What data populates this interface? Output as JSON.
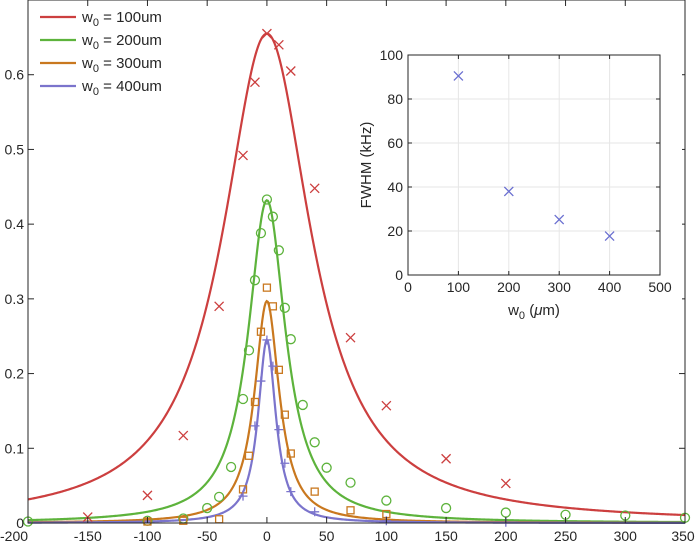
{
  "chart_data": [
    {
      "type": "line",
      "xlim": [
        -200,
        350
      ],
      "ylim": [
        0,
        0.7
      ],
      "x_ticks": [
        -200,
        -150,
        -100,
        -50,
        0,
        50,
        100,
        150,
        200,
        250,
        300,
        350
      ],
      "y_ticks": [
        0,
        0.1,
        0.2,
        0.3,
        0.4,
        0.5,
        0.6
      ],
      "x_tick_labels": [
        "-200",
        "-150",
        "-100",
        "-50",
        "0",
        "50",
        "100",
        "150",
        "200",
        "250",
        "300",
        "350"
      ],
      "y_tick_labels": [
        "0",
        "0.1",
        "0.2",
        "0.3",
        "0.4",
        "0.5",
        "0.6"
      ],
      "grid": false,
      "legend_position": "top-left",
      "series": [
        {
          "name": "w_0 = 100um",
          "legend_base": "w",
          "legend_sub": "0",
          "legend_rest": " = 100um",
          "color": "#cc3f3f",
          "marker": "x",
          "fit": {
            "amplitude": 0.655,
            "center": 0,
            "hwhm": 45
          },
          "points": [
            {
              "x": -150,
              "y": 0.008
            },
            {
              "x": -100,
              "y": 0.037
            },
            {
              "x": -70,
              "y": 0.117
            },
            {
              "x": -40,
              "y": 0.29
            },
            {
              "x": -20,
              "y": 0.492
            },
            {
              "x": -10,
              "y": 0.59
            },
            {
              "x": 0,
              "y": 0.655
            },
            {
              "x": 10,
              "y": 0.64
            },
            {
              "x": 20,
              "y": 0.605
            },
            {
              "x": 40,
              "y": 0.448
            },
            {
              "x": 70,
              "y": 0.248
            },
            {
              "x": 100,
              "y": 0.157
            },
            {
              "x": 150,
              "y": 0.086
            },
            {
              "x": 200,
              "y": 0.053
            }
          ]
        },
        {
          "name": "w_0 = 200um",
          "legend_base": "w",
          "legend_sub": "0",
          "legend_rest": " = 200um",
          "color": "#5db33c",
          "marker": "o",
          "fit": {
            "amplitude": 0.432,
            "center": 0,
            "hwhm": 19
          },
          "points": [
            {
              "x": -200,
              "y": 0.002
            },
            {
              "x": -100,
              "y": 0.003
            },
            {
              "x": -70,
              "y": 0.006
            },
            {
              "x": -50,
              "y": 0.02
            },
            {
              "x": -40,
              "y": 0.035
            },
            {
              "x": -30,
              "y": 0.075
            },
            {
              "x": -20,
              "y": 0.166
            },
            {
              "x": -15,
              "y": 0.231
            },
            {
              "x": -10,
              "y": 0.325
            },
            {
              "x": -5,
              "y": 0.388
            },
            {
              "x": 0,
              "y": 0.433
            },
            {
              "x": 5,
              "y": 0.41
            },
            {
              "x": 10,
              "y": 0.365
            },
            {
              "x": 15,
              "y": 0.288
            },
            {
              "x": 20,
              "y": 0.246
            },
            {
              "x": 30,
              "y": 0.158
            },
            {
              "x": 40,
              "y": 0.108
            },
            {
              "x": 50,
              "y": 0.074
            },
            {
              "x": 70,
              "y": 0.054
            },
            {
              "x": 100,
              "y": 0.03
            },
            {
              "x": 150,
              "y": 0.02
            },
            {
              "x": 200,
              "y": 0.014
            },
            {
              "x": 250,
              "y": 0.011
            },
            {
              "x": 300,
              "y": 0.01
            },
            {
              "x": 350,
              "y": 0.007
            }
          ]
        },
        {
          "name": "w_0 = 300um",
          "legend_base": "w",
          "legend_sub": "0",
          "legend_rest": " = 300um",
          "color": "#c9781f",
          "marker": "s",
          "fit": {
            "amplitude": 0.297,
            "center": 0,
            "hwhm": 12.5
          },
          "points": [
            {
              "x": -100,
              "y": 0.002
            },
            {
              "x": -70,
              "y": 0.003
            },
            {
              "x": -40,
              "y": 0.005
            },
            {
              "x": -20,
              "y": 0.045
            },
            {
              "x": -15,
              "y": 0.09
            },
            {
              "x": -10,
              "y": 0.162
            },
            {
              "x": -5,
              "y": 0.256
            },
            {
              "x": 0,
              "y": 0.315
            },
            {
              "x": 5,
              "y": 0.29
            },
            {
              "x": 10,
              "y": 0.205
            },
            {
              "x": 15,
              "y": 0.145
            },
            {
              "x": 20,
              "y": 0.093
            },
            {
              "x": 40,
              "y": 0.042
            },
            {
              "x": 70,
              "y": 0.017
            },
            {
              "x": 100,
              "y": 0.012
            }
          ]
        },
        {
          "name": "w_0 = 400um",
          "legend_base": "w",
          "legend_sub": "0",
          "legend_rest": " = 400um",
          "color": "#7b74cc",
          "marker": "+",
          "fit": {
            "amplitude": 0.245,
            "center": 0,
            "hwhm": 9
          },
          "points": [
            {
              "x": -20,
              "y": 0.036
            },
            {
              "x": -10,
              "y": 0.13
            },
            {
              "x": -5,
              "y": 0.19
            },
            {
              "x": 0,
              "y": 0.245
            },
            {
              "x": 5,
              "y": 0.21
            },
            {
              "x": 10,
              "y": 0.125
            },
            {
              "x": 15,
              "y": 0.08
            },
            {
              "x": 20,
              "y": 0.042
            },
            {
              "x": 40,
              "y": 0.015
            },
            {
              "x": 100,
              "y": 0.003
            },
            {
              "x": 200,
              "y": 0.001
            }
          ]
        }
      ]
    },
    {
      "type": "scatter",
      "xlim": [
        0,
        500
      ],
      "ylim": [
        0,
        100
      ],
      "x_ticks": [
        0,
        100,
        200,
        300,
        400,
        500
      ],
      "y_ticks": [
        0,
        20,
        40,
        60,
        80,
        100
      ],
      "x_tick_labels": [
        "0",
        "100",
        "200",
        "300",
        "400",
        "500"
      ],
      "y_tick_labels": [
        "0",
        "20",
        "40",
        "60",
        "80",
        "100"
      ],
      "grid": true,
      "xlabel_base": "w",
      "xlabel_sub": "0",
      "xlabel_rest": " (",
      "xlabel_mu": "μ",
      "xlabel_unit": "m)",
      "ylabel": "FWHM (kHz)",
      "series": [
        {
          "color": "#6a6fd0",
          "marker": "x",
          "points": [
            {
              "x": 100,
              "y": 90.5
            },
            {
              "x": 200,
              "y": 38
            },
            {
              "x": 300,
              "y": 25.2
            },
            {
              "x": 400,
              "y": 17.7
            }
          ]
        }
      ]
    }
  ]
}
